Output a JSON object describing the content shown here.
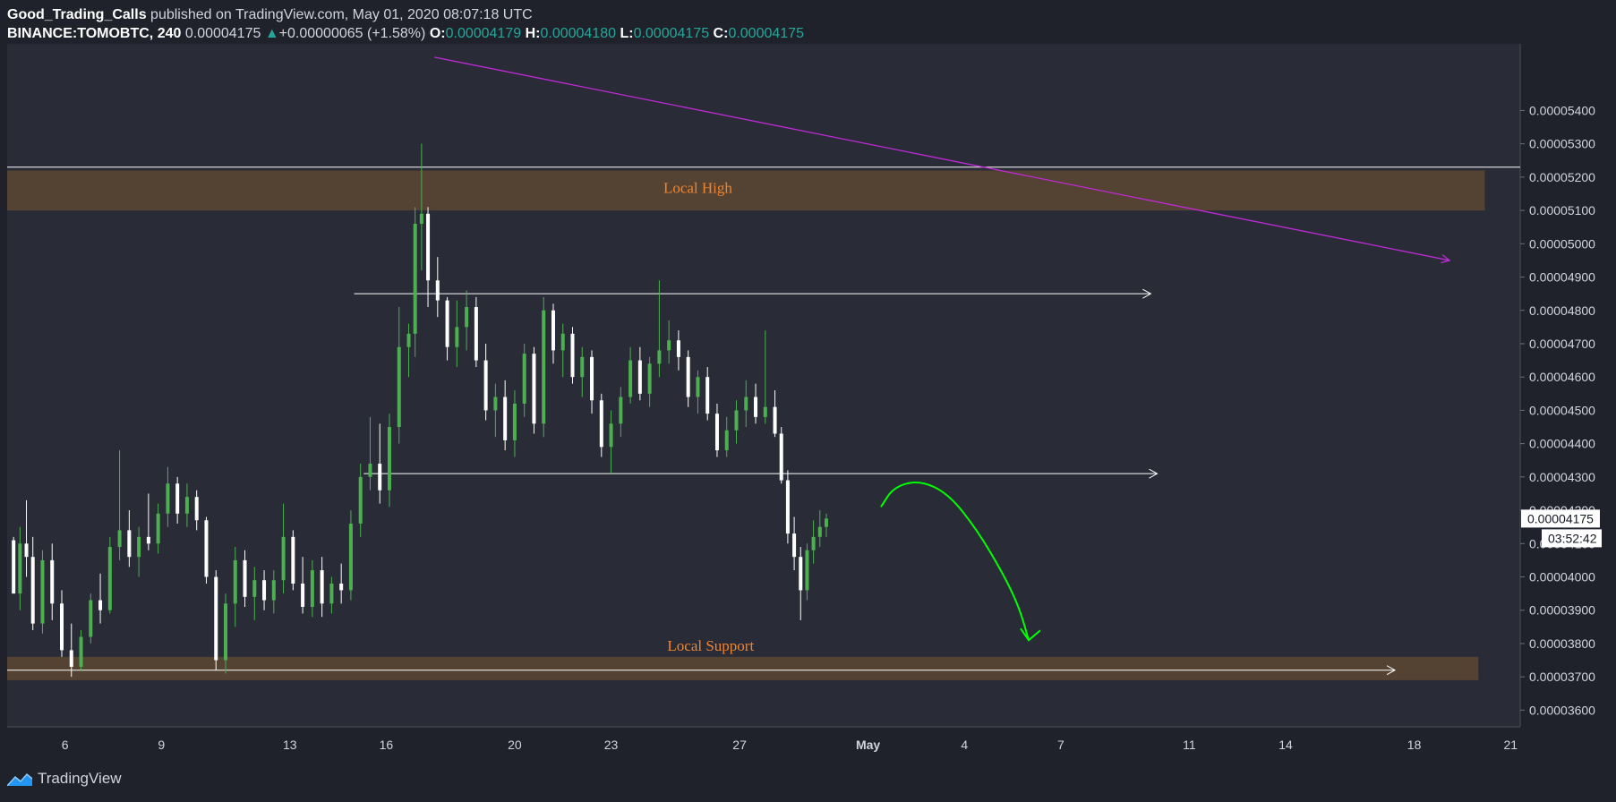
{
  "header": {
    "author": "Good_Trading_Calls",
    "published_text": "published on TradingView.com, May 01, 2020 08:07:18 UTC",
    "symbol": "BINANCE:TOMOBTC, 240",
    "last": "0.00004175",
    "change_arrow": "▲",
    "change": "+0.00000065 (+1.58%)",
    "open_label": "O:",
    "open": "0.00004179",
    "high_label": "H:",
    "high": "0.00004180",
    "low_label": "L:",
    "low": "0.00004175",
    "close_label": "C:",
    "close": "0.00004175"
  },
  "price_badge": "0.00004175",
  "countdown_badge": "03:52:42",
  "footer": {
    "brand": "TradingView",
    "logo_icon": "tradingview-logo-icon"
  },
  "colors": {
    "background": "#1f222b",
    "plot_background": "#292c37",
    "up_candle": "#4caf50",
    "down_candle": "#ffffff",
    "zone_fill": "#5c4632",
    "zone_label": "#f0852d",
    "trendline": "#c02ad6",
    "projection": "#00ff00",
    "horizontal_lines": "#ffffff"
  },
  "chart_data": {
    "type": "candlestick",
    "symbol": "BINANCE:TOMOBTC",
    "timeframe": "240",
    "ylim": [
      3.55e-05,
      5.6e-05
    ],
    "y_ticks": [
      "0.00003600",
      "0.00003700",
      "0.00003800",
      "0.00003900",
      "0.00004000",
      "0.00004100",
      "0.00004200",
      "0.00004300",
      "0.00004400",
      "0.00004500",
      "0.00004600",
      "0.00004700",
      "0.00004800",
      "0.00004900",
      "0.00005000",
      "0.00005100",
      "0.00005200",
      "0.00005300",
      "0.00005400"
    ],
    "x_ticks": [
      {
        "label": "6",
        "day": 6
      },
      {
        "label": "9",
        "day": 9
      },
      {
        "label": "13",
        "day": 13
      },
      {
        "label": "16",
        "day": 16
      },
      {
        "label": "20",
        "day": 20
      },
      {
        "label": "23",
        "day": 23
      },
      {
        "label": "27",
        "day": 27
      },
      {
        "label": "May",
        "day": 31
      },
      {
        "label": "4",
        "day": 34
      },
      {
        "label": "7",
        "day": 37
      },
      {
        "label": "11",
        "day": 41
      },
      {
        "label": "14",
        "day": 44
      },
      {
        "label": "18",
        "day": 48
      },
      {
        "label": "21",
        "day": 51
      }
    ],
    "x_unit": "days since Apr 1, 2020",
    "x_range": [
      4.2,
      51.3
    ],
    "annotations": {
      "zones": [
        {
          "label": "Local High",
          "y0": 5.1e-05,
          "y1": 5.22e-05,
          "x0": 4.2,
          "x1": 50.2
        },
        {
          "label": "Local Support",
          "y0": 3.69e-05,
          "y1": 3.76e-05,
          "x0": 4.2,
          "x1": 50.0
        }
      ],
      "hlines": [
        {
          "y": 5.23e-05,
          "x0": 4.2,
          "x1": 51.3,
          "arrow": false
        },
        {
          "y": 4.85e-05,
          "x0": 15.0,
          "x1": 39.8,
          "arrow": true
        },
        {
          "y": 4.31e-05,
          "x0": 15.3,
          "x1": 40.0,
          "arrow": true
        },
        {
          "y": 3.72e-05,
          "x0": 4.2,
          "x1": 47.4,
          "arrow": true
        }
      ],
      "trendline": {
        "x0": 17.5,
        "y0": 5.56e-05,
        "x1": 49.1,
        "y1": 4.95e-05
      },
      "projection": [
        [
          31.4,
          4.21e-05
        ],
        [
          31.8,
          4.27e-05
        ],
        [
          32.6,
          4.29e-05
        ],
        [
          33.5,
          4.25e-05
        ],
        [
          34.4,
          4.14e-05
        ],
        [
          35.2,
          4.01e-05
        ],
        [
          35.7,
          3.91e-05
        ],
        [
          36.0,
          3.81e-05
        ]
      ]
    },
    "candles_daily": [
      {
        "d": 4.4,
        "o": 41.1,
        "h": 41.2,
        "l": 39.5,
        "c": 39.5
      },
      {
        "d": 4.6,
        "o": 39.5,
        "h": 41.5,
        "l": 39.0,
        "c": 41.0
      },
      {
        "d": 4.8,
        "o": 41.0,
        "h": 42.3,
        "l": 40.0,
        "c": 40.6
      },
      {
        "d": 5.0,
        "o": 40.6,
        "h": 41.2,
        "l": 38.4,
        "c": 38.6
      },
      {
        "d": 5.3,
        "o": 38.6,
        "h": 40.8,
        "l": 38.3,
        "c": 40.5
      },
      {
        "d": 5.6,
        "o": 40.5,
        "h": 41.0,
        "l": 38.7,
        "c": 39.2
      },
      {
        "d": 5.9,
        "o": 39.2,
        "h": 39.6,
        "l": 37.6,
        "c": 37.8
      },
      {
        "d": 6.2,
        "o": 37.8,
        "h": 38.6,
        "l": 37.0,
        "c": 37.3
      },
      {
        "d": 6.5,
        "o": 37.3,
        "h": 38.4,
        "l": 37.2,
        "c": 38.2
      },
      {
        "d": 6.8,
        "o": 38.2,
        "h": 39.5,
        "l": 38.0,
        "c": 39.3
      },
      {
        "d": 7.1,
        "o": 39.3,
        "h": 40.1,
        "l": 38.6,
        "c": 39.0
      },
      {
        "d": 7.4,
        "o": 39.0,
        "h": 41.2,
        "l": 38.9,
        "c": 40.9
      },
      {
        "d": 7.7,
        "o": 40.9,
        "h": 43.8,
        "l": 40.5,
        "c": 41.4
      },
      {
        "d": 8.0,
        "o": 41.4,
        "h": 42.0,
        "l": 40.3,
        "c": 40.6
      },
      {
        "d": 8.3,
        "o": 40.6,
        "h": 41.5,
        "l": 40.0,
        "c": 41.2
      },
      {
        "d": 8.6,
        "o": 41.2,
        "h": 42.5,
        "l": 40.8,
        "c": 41.0
      },
      {
        "d": 8.9,
        "o": 41.0,
        "h": 42.2,
        "l": 40.7,
        "c": 41.9
      },
      {
        "d": 9.2,
        "o": 41.9,
        "h": 43.3,
        "l": 41.5,
        "c": 42.8
      },
      {
        "d": 9.5,
        "o": 42.8,
        "h": 43.0,
        "l": 41.6,
        "c": 41.9
      },
      {
        "d": 9.8,
        "o": 41.9,
        "h": 42.8,
        "l": 41.5,
        "c": 42.4
      },
      {
        "d": 10.1,
        "o": 42.4,
        "h": 42.6,
        "l": 41.4,
        "c": 41.7
      },
      {
        "d": 10.4,
        "o": 41.7,
        "h": 41.8,
        "l": 39.8,
        "c": 40.0
      },
      {
        "d": 10.7,
        "o": 40.0,
        "h": 40.2,
        "l": 37.2,
        "c": 37.5
      },
      {
        "d": 11.0,
        "o": 37.5,
        "h": 39.5,
        "l": 37.1,
        "c": 39.2
      },
      {
        "d": 11.3,
        "o": 39.2,
        "h": 40.9,
        "l": 38.5,
        "c": 40.5
      },
      {
        "d": 11.6,
        "o": 40.5,
        "h": 40.8,
        "l": 39.1,
        "c": 39.4
      },
      {
        "d": 11.9,
        "o": 39.4,
        "h": 40.3,
        "l": 38.7,
        "c": 39.9
      },
      {
        "d": 12.2,
        "o": 39.9,
        "h": 40.2,
        "l": 39.0,
        "c": 39.3
      },
      {
        "d": 12.5,
        "o": 39.3,
        "h": 40.2,
        "l": 38.9,
        "c": 39.9
      },
      {
        "d": 12.8,
        "o": 39.9,
        "h": 42.2,
        "l": 39.5,
        "c": 41.2
      },
      {
        "d": 13.1,
        "o": 41.2,
        "h": 41.4,
        "l": 39.6,
        "c": 39.8
      },
      {
        "d": 13.4,
        "o": 39.8,
        "h": 40.6,
        "l": 38.9,
        "c": 39.1
      },
      {
        "d": 13.7,
        "o": 39.1,
        "h": 40.5,
        "l": 38.8,
        "c": 40.2
      },
      {
        "d": 14.0,
        "o": 40.2,
        "h": 40.6,
        "l": 38.8,
        "c": 39.2
      },
      {
        "d": 14.3,
        "o": 39.2,
        "h": 40.0,
        "l": 38.9,
        "c": 39.8
      },
      {
        "d": 14.6,
        "o": 39.8,
        "h": 40.4,
        "l": 39.2,
        "c": 39.6
      },
      {
        "d": 14.9,
        "o": 39.6,
        "h": 42.0,
        "l": 39.3,
        "c": 41.6
      },
      {
        "d": 15.2,
        "o": 41.6,
        "h": 43.4,
        "l": 41.2,
        "c": 43.0
      },
      {
        "d": 15.5,
        "o": 43.0,
        "h": 44.8,
        "l": 42.6,
        "c": 43.4
      },
      {
        "d": 15.8,
        "o": 43.4,
        "h": 44.6,
        "l": 42.2,
        "c": 42.6
      },
      {
        "d": 16.1,
        "o": 42.6,
        "h": 44.9,
        "l": 42.1,
        "c": 44.5
      },
      {
        "d": 16.4,
        "o": 44.5,
        "h": 48.1,
        "l": 44.0,
        "c": 46.9
      },
      {
        "d": 16.7,
        "o": 46.9,
        "h": 47.6,
        "l": 46.0,
        "c": 47.3
      },
      {
        "d": 16.9,
        "o": 47.3,
        "h": 51.1,
        "l": 46.6,
        "c": 50.6
      },
      {
        "d": 17.1,
        "o": 50.6,
        "h": 53.0,
        "l": 49.2,
        "c": 50.9
      },
      {
        "d": 17.3,
        "o": 50.9,
        "h": 51.1,
        "l": 48.1,
        "c": 48.9
      },
      {
        "d": 17.6,
        "o": 48.9,
        "h": 49.6,
        "l": 47.8,
        "c": 48.3
      },
      {
        "d": 17.9,
        "o": 48.3,
        "h": 48.4,
        "l": 46.5,
        "c": 46.9
      },
      {
        "d": 18.2,
        "o": 46.9,
        "h": 48.3,
        "l": 46.3,
        "c": 47.5
      },
      {
        "d": 18.5,
        "o": 47.5,
        "h": 48.6,
        "l": 46.8,
        "c": 48.1
      },
      {
        "d": 18.8,
        "o": 48.1,
        "h": 48.4,
        "l": 46.3,
        "c": 46.5
      },
      {
        "d": 19.1,
        "o": 46.5,
        "h": 47.0,
        "l": 44.7,
        "c": 45.0
      },
      {
        "d": 19.4,
        "o": 45.0,
        "h": 45.8,
        "l": 44.2,
        "c": 45.4
      },
      {
        "d": 19.7,
        "o": 45.4,
        "h": 45.9,
        "l": 43.8,
        "c": 44.1
      },
      {
        "d": 20.0,
        "o": 44.1,
        "h": 45.6,
        "l": 43.6,
        "c": 45.2
      },
      {
        "d": 20.3,
        "o": 45.2,
        "h": 47.0,
        "l": 44.8,
        "c": 46.7
      },
      {
        "d": 20.6,
        "o": 46.7,
        "h": 46.9,
        "l": 44.3,
        "c": 44.6
      },
      {
        "d": 20.9,
        "o": 44.6,
        "h": 48.4,
        "l": 44.2,
        "c": 48.0
      },
      {
        "d": 21.2,
        "o": 48.0,
        "h": 48.2,
        "l": 46.4,
        "c": 46.8
      },
      {
        "d": 21.5,
        "o": 46.8,
        "h": 47.6,
        "l": 46.0,
        "c": 47.3
      },
      {
        "d": 21.8,
        "o": 47.3,
        "h": 47.5,
        "l": 45.8,
        "c": 46.0
      },
      {
        "d": 22.1,
        "o": 46.0,
        "h": 46.9,
        "l": 45.4,
        "c": 46.6
      },
      {
        "d": 22.4,
        "o": 46.6,
        "h": 46.8,
        "l": 44.9,
        "c": 45.3
      },
      {
        "d": 22.7,
        "o": 45.3,
        "h": 45.5,
        "l": 43.6,
        "c": 43.9
      },
      {
        "d": 23.0,
        "o": 43.9,
        "h": 45.0,
        "l": 43.1,
        "c": 44.6
      },
      {
        "d": 23.3,
        "o": 44.6,
        "h": 45.7,
        "l": 44.2,
        "c": 45.4
      },
      {
        "d": 23.6,
        "o": 45.4,
        "h": 46.9,
        "l": 45.2,
        "c": 46.5
      },
      {
        "d": 23.9,
        "o": 46.5,
        "h": 46.9,
        "l": 45.3,
        "c": 45.5
      },
      {
        "d": 24.2,
        "o": 45.5,
        "h": 46.6,
        "l": 45.1,
        "c": 46.4
      },
      {
        "d": 24.5,
        "o": 46.4,
        "h": 48.9,
        "l": 46.0,
        "c": 46.8
      },
      {
        "d": 24.8,
        "o": 46.8,
        "h": 47.7,
        "l": 46.4,
        "c": 47.1
      },
      {
        "d": 25.1,
        "o": 47.1,
        "h": 47.4,
        "l": 46.2,
        "c": 46.6
      },
      {
        "d": 25.4,
        "o": 46.6,
        "h": 46.8,
        "l": 45.1,
        "c": 45.4
      },
      {
        "d": 25.7,
        "o": 45.4,
        "h": 46.2,
        "l": 44.9,
        "c": 46.0
      },
      {
        "d": 26.0,
        "o": 46.0,
        "h": 46.3,
        "l": 44.7,
        "c": 44.9
      },
      {
        "d": 26.3,
        "o": 44.9,
        "h": 45.2,
        "l": 43.6,
        "c": 43.8
      },
      {
        "d": 26.6,
        "o": 43.8,
        "h": 44.8,
        "l": 43.6,
        "c": 44.4
      },
      {
        "d": 26.9,
        "o": 44.4,
        "h": 45.3,
        "l": 44.0,
        "c": 45.0
      },
      {
        "d": 27.2,
        "o": 45.0,
        "h": 45.9,
        "l": 44.5,
        "c": 45.4
      },
      {
        "d": 27.5,
        "o": 45.4,
        "h": 45.8,
        "l": 44.6,
        "c": 44.8
      },
      {
        "d": 27.8,
        "o": 44.8,
        "h": 47.4,
        "l": 44.6,
        "c": 45.1
      },
      {
        "d": 28.1,
        "o": 45.1,
        "h": 45.6,
        "l": 44.2,
        "c": 44.3
      },
      {
        "d": 28.3,
        "o": 44.3,
        "h": 44.5,
        "l": 42.8,
        "c": 42.9
      },
      {
        "d": 28.5,
        "o": 42.9,
        "h": 43.2,
        "l": 41.0,
        "c": 41.3
      },
      {
        "d": 28.7,
        "o": 41.3,
        "h": 41.8,
        "l": 40.2,
        "c": 40.6
      },
      {
        "d": 28.9,
        "o": 40.6,
        "h": 40.9,
        "l": 38.7,
        "c": 39.6
      },
      {
        "d": 29.1,
        "o": 39.6,
        "h": 41.0,
        "l": 39.3,
        "c": 40.8
      },
      {
        "d": 29.3,
        "o": 40.8,
        "h": 41.7,
        "l": 40.4,
        "c": 41.2
      },
      {
        "d": 29.5,
        "o": 41.2,
        "h": 42.0,
        "l": 40.9,
        "c": 41.5
      },
      {
        "d": 29.7,
        "o": 41.5,
        "h": 41.9,
        "l": 41.2,
        "c": 41.75
      }
    ]
  }
}
